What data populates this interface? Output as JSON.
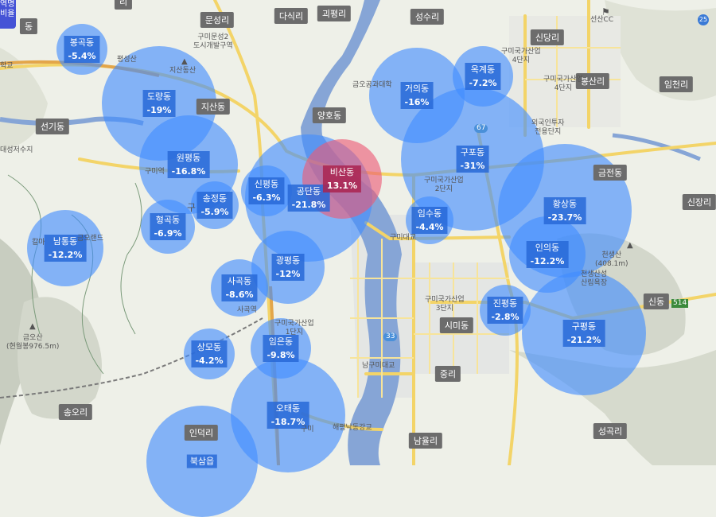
{
  "legend": {
    "line1": "역명",
    "line2": "비율"
  },
  "bubbles": [
    {
      "id": "bonggok",
      "name": "봉곡동",
      "pct": "-5.4%",
      "type": "dec"
    },
    {
      "id": "dorang",
      "name": "도량동",
      "pct": "-19%",
      "type": "dec"
    },
    {
      "id": "wonpyeong",
      "name": "원평동",
      "pct": "-16.8%",
      "type": "dec"
    },
    {
      "id": "songjeong",
      "name": "송정동",
      "pct": "-5.9%",
      "type": "dec"
    },
    {
      "id": "sinpyeong",
      "name": "신평동",
      "pct": "-6.3%",
      "type": "dec"
    },
    {
      "id": "gongdan",
      "name": "공단동",
      "pct": "-21.8%",
      "type": "dec"
    },
    {
      "id": "bisan",
      "name": "비산동",
      "pct": "13.1%",
      "type": "inc"
    },
    {
      "id": "hyeonggok",
      "name": "형곡동",
      "pct": "-6.9%",
      "type": "dec"
    },
    {
      "id": "namtong",
      "name": "남통동",
      "pct": "-12.2%",
      "type": "dec"
    },
    {
      "id": "gwangpyeong",
      "name": "광평동",
      "pct": "-12%",
      "type": "dec"
    },
    {
      "id": "sagok",
      "name": "사곡동",
      "pct": "-8.6%",
      "type": "dec"
    },
    {
      "id": "sangmo",
      "name": "상모동",
      "pct": "-4.2%",
      "type": "dec"
    },
    {
      "id": "imeun",
      "name": "임은동",
      "pct": "-9.8%",
      "type": "dec"
    },
    {
      "id": "otae",
      "name": "오태동",
      "pct": "-18.7%",
      "type": "dec"
    },
    {
      "id": "buksam",
      "name": "북삼읍",
      "pct": "",
      "type": "dec"
    },
    {
      "id": "geoui",
      "name": "거의동",
      "pct": "-16%",
      "type": "dec"
    },
    {
      "id": "okgye",
      "name": "옥계동",
      "pct": "-7.2%",
      "type": "dec"
    },
    {
      "id": "gupo",
      "name": "구포동",
      "pct": "-31%",
      "type": "dec"
    },
    {
      "id": "imsu",
      "name": "임수동",
      "pct": "-4.4%",
      "type": "dec"
    },
    {
      "id": "hwangsang",
      "name": "황상동",
      "pct": "-23.7%",
      "type": "dec"
    },
    {
      "id": "inui",
      "name": "인의동",
      "pct": "-12.2%",
      "type": "dec"
    },
    {
      "id": "jinpyeong",
      "name": "진평동",
      "pct": "-2.8%",
      "type": "dec"
    },
    {
      "id": "gupyeong",
      "name": "구평동",
      "pct": "-21.2%",
      "type": "dec"
    }
  ],
  "places": [
    {
      "id": "munseongri",
      "text": "문성리"
    },
    {
      "id": "dasikri",
      "text": "다식리"
    },
    {
      "id": "goepyeongri",
      "text": "괴평리"
    },
    {
      "id": "seongsuri",
      "text": "성수리"
    },
    {
      "id": "sindangri",
      "text": "신당리"
    },
    {
      "id": "bongsanri",
      "text": "봉산리"
    },
    {
      "id": "imcheonri",
      "text": "임천리"
    },
    {
      "id": "jisandong",
      "text": "지산동"
    },
    {
      "id": "seongidong",
      "text": "선기동"
    },
    {
      "id": "yanghodong",
      "text": "양호동"
    },
    {
      "id": "geumjeondong",
      "text": "금전동"
    },
    {
      "id": "sinjangri",
      "text": "신장리"
    },
    {
      "id": "sindong",
      "text": "신동"
    },
    {
      "id": "simidong",
      "text": "시미동"
    },
    {
      "id": "jungri",
      "text": "중리"
    },
    {
      "id": "songori",
      "text": "송오리"
    },
    {
      "id": "namyulri",
      "text": "남율리"
    },
    {
      "id": "seonggokri",
      "text": "성곡리"
    },
    {
      "id": "indeokri",
      "text": "인덕리"
    },
    {
      "id": "topdong",
      "text": "동"
    },
    {
      "id": "toprightbadge",
      "text": "리"
    }
  ],
  "map_texts": [
    {
      "id": "seonsan_cc",
      "text": "선산CC"
    },
    {
      "id": "gumi_munseong2",
      "text": "구미문성2\n도시개발구역"
    },
    {
      "id": "gumi_ind4_top",
      "text": "구미국가산업\n4단지"
    },
    {
      "id": "gumi_ind4",
      "text": "구미국가산업\n4단지"
    },
    {
      "id": "foreign_invest",
      "text": "외국인투자\n전용단지"
    },
    {
      "id": "gumi_ind2",
      "text": "구미국가산업\n2단지"
    },
    {
      "id": "gumi_ind3",
      "text": "구미국가산업\n3단지"
    },
    {
      "id": "gumi_ind1",
      "text": "구미국가산업\n1단지"
    },
    {
      "id": "geumo_bridge",
      "text": "금오공과대학"
    },
    {
      "id": "gumi_bridge",
      "text": "구미대교"
    },
    {
      "id": "namgumi_bridge",
      "text": "남구미대교"
    },
    {
      "id": "haepyeong_bridge",
      "text": "해평낙동강교"
    },
    {
      "id": "gumi_station",
      "text": "구미역"
    },
    {
      "id": "sagok_station",
      "text": "사곡역"
    },
    {
      "id": "jisansan",
      "text": "지산동산"
    },
    {
      "id": "pyeongsan",
      "text": "평성산"
    },
    {
      "id": "geumosan",
      "text": "금오산\n(현월봉976.5m)"
    },
    {
      "id": "cheonsaengsan",
      "text": "천생산\n(408.1m)"
    },
    {
      "id": "cheonsaeng_fortress",
      "text": "천생산성\n산림욕장"
    },
    {
      "id": "reservoir",
      "text": "대성저수지"
    },
    {
      "id": "geumo_land",
      "text": "금오랜드"
    },
    {
      "id": "gummi_area",
      "text": "구미"
    },
    {
      "id": "gu_text",
      "text": "구"
    },
    {
      "id": "road_33",
      "text": "33"
    },
    {
      "id": "road_67",
      "text": "67"
    },
    {
      "id": "road_514",
      "text": "514"
    },
    {
      "id": "hakgyo",
      "text": "학교"
    },
    {
      "id": "galmo",
      "text": "칼마"
    }
  ]
}
